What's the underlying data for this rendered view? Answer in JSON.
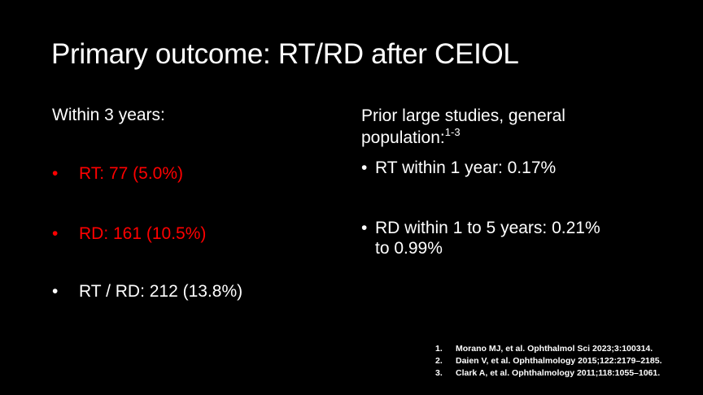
{
  "slide": {
    "title": "Primary outcome: RT/RD after CEIOL",
    "background_color": "#000000",
    "text_color": "#FFFFFF",
    "highlight_color": "#FF0000",
    "bullet_glyph": "•"
  },
  "left_column": {
    "heading": "Within 3 years:",
    "bullets": [
      {
        "text": "RT: 77 (5.0%)",
        "highlighted": true
      },
      {
        "text": "RD: 161 (10.5%)",
        "highlighted": true
      },
      {
        "text": "RT / RD: 212 (13.8%)",
        "highlighted": false
      }
    ]
  },
  "right_column": {
    "heading": "Prior large studies, general population:",
    "heading_superscript": "1-3",
    "bullets": [
      {
        "text": "RT within 1 year: 0.17%"
      },
      {
        "text": "RD within 1 to 5 years: 0.21% to 0.99%"
      }
    ]
  },
  "references": [
    {
      "number": "1.",
      "text": "Morano MJ, et al. Ophthalmol Sci 2023;3:100314."
    },
    {
      "number": "2.",
      "text": "Daien V, et al. Ophthalmology 2015;122:2179–2185."
    },
    {
      "number": "3.",
      "text": "Clark A, et al. Ophthalmology 2011;118:1055–1061."
    }
  ]
}
